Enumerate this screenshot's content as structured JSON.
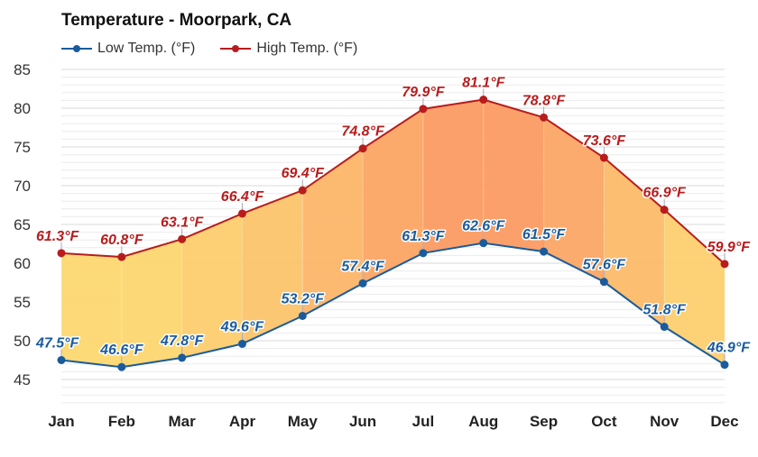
{
  "chart_data": {
    "type": "line",
    "title": "Temperature - Moorpark, CA",
    "categories": [
      "Jan",
      "Feb",
      "Mar",
      "Apr",
      "May",
      "Jun",
      "Jul",
      "Aug",
      "Sep",
      "Oct",
      "Nov",
      "Dec"
    ],
    "series": [
      {
        "name": "Low Temp. (°F)",
        "color": "#1a5b9c",
        "values": [
          47.5,
          46.6,
          47.8,
          49.6,
          53.2,
          57.4,
          61.3,
          62.6,
          61.5,
          57.6,
          51.8,
          46.9
        ]
      },
      {
        "name": "High Temp. (°F)",
        "color": "#b81c1c",
        "values": [
          61.3,
          60.8,
          63.1,
          66.4,
          69.4,
          74.8,
          79.9,
          81.1,
          78.8,
          73.6,
          66.9,
          59.9
        ]
      }
    ],
    "label_suffix": "°F",
    "yticks": [
      45,
      50,
      55,
      60,
      65,
      70,
      75,
      80,
      85
    ],
    "ylim": [
      42,
      85
    ],
    "grid": true,
    "legend": "top-left",
    "fill_colors": {
      "cool": "#fdd870",
      "warm": "#fb9b62"
    }
  }
}
